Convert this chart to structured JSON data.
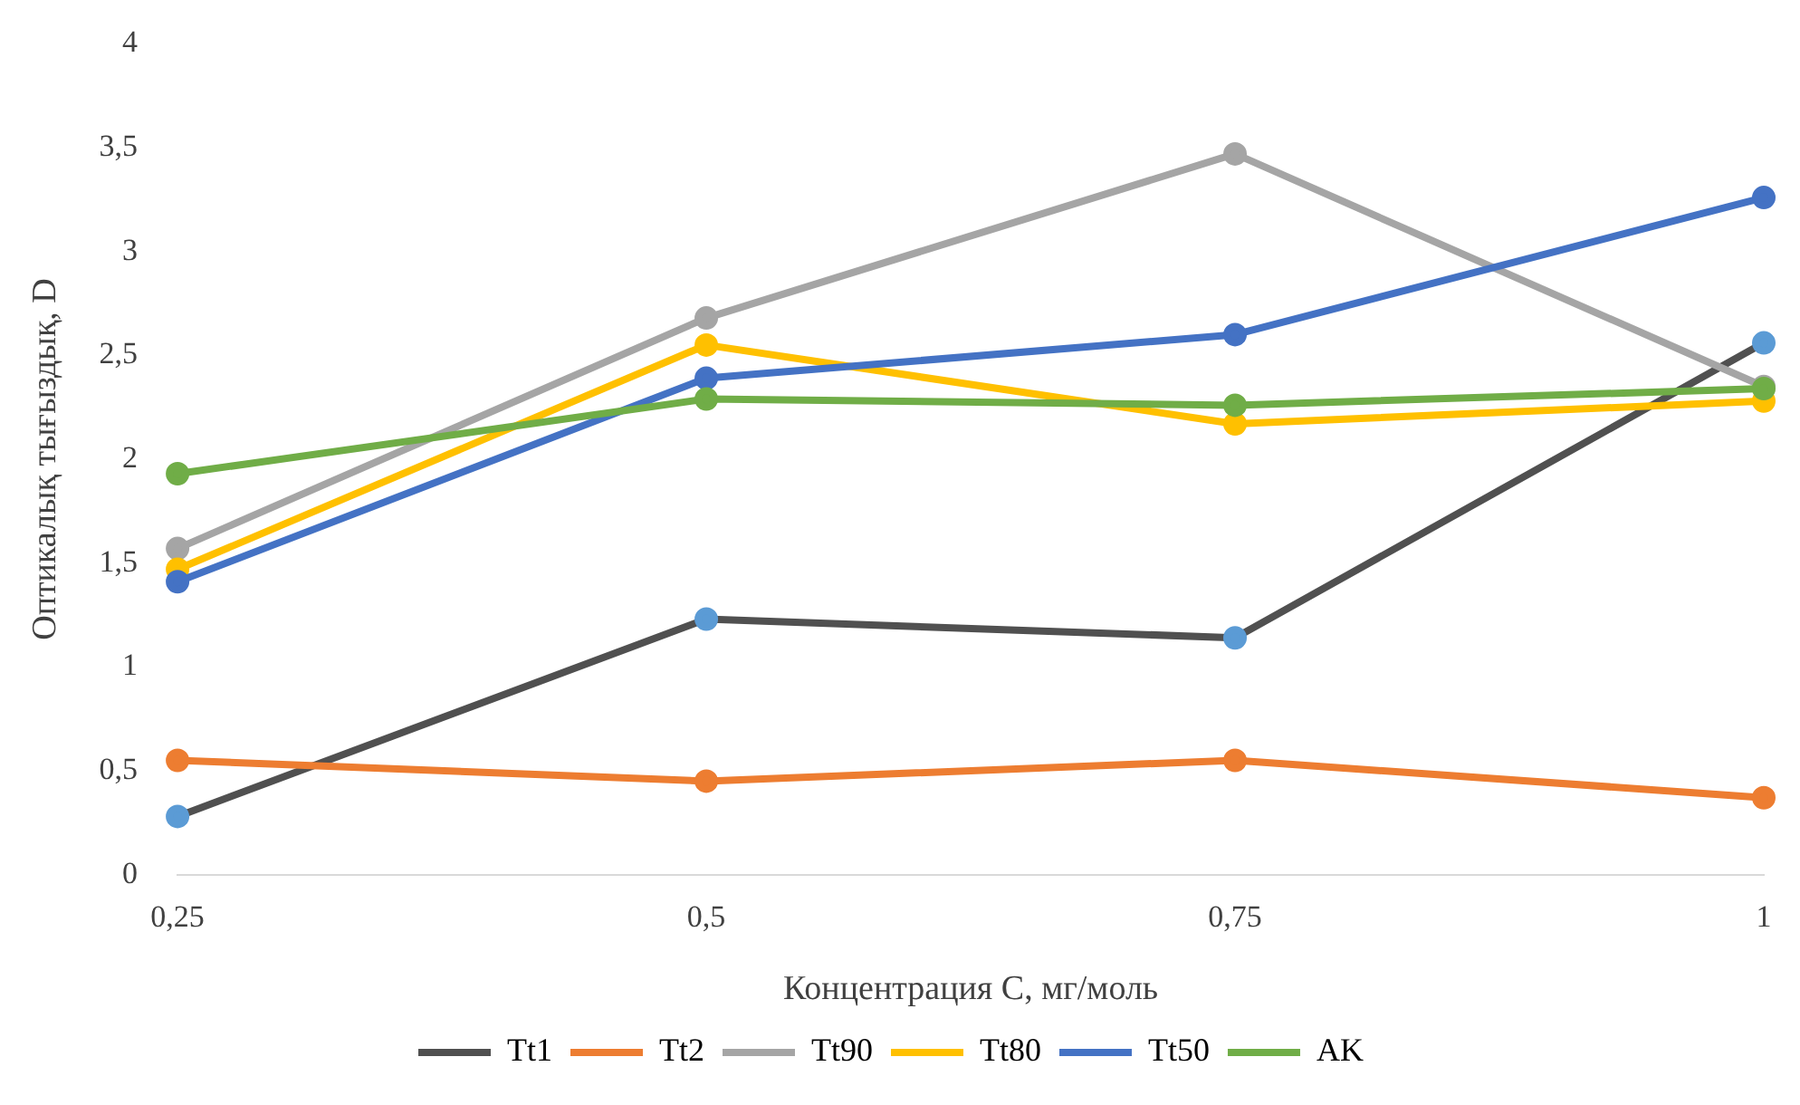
{
  "chart_data": {
    "type": "line",
    "xlabel": "Концентрация С, мг/моль",
    "ylabel": "Оптикалық тығыздық, D",
    "categories": [
      "0,25",
      "0,5",
      "0,75",
      "1"
    ],
    "ylim": [
      0,
      4
    ],
    "yticks": [
      {
        "value": 0,
        "label": "0"
      },
      {
        "value": 0.5,
        "label": "0,5"
      },
      {
        "value": 1,
        "label": "1"
      },
      {
        "value": 1.5,
        "label": "1,5"
      },
      {
        "value": 2,
        "label": "2"
      },
      {
        "value": 2.5,
        "label": "2,5"
      },
      {
        "value": 3,
        "label": "3"
      },
      {
        "value": 3.5,
        "label": "3,5"
      },
      {
        "value": 4,
        "label": "4"
      }
    ],
    "grid": false,
    "legend": "bottom",
    "marker": "circle",
    "line_style": "solid",
    "series": [
      {
        "name": "Tt1",
        "color": "#505050",
        "colors": [
          "#5b9bd5",
          "#5b9bd5",
          "#5b9bd5",
          "#5b9bd5"
        ],
        "values": [
          0.28,
          1.23,
          1.14,
          2.56
        ]
      },
      {
        "name": "Tt2",
        "color": "#ed7d31",
        "values": [
          0.55,
          0.45,
          0.55,
          0.37
        ]
      },
      {
        "name": "Tt90",
        "color": "#a5a5a5",
        "values": [
          1.57,
          2.68,
          3.47,
          2.35
        ]
      },
      {
        "name": "Tt80",
        "color": "#ffc000",
        "values": [
          1.47,
          2.55,
          2.17,
          2.28
        ]
      },
      {
        "name": "Tt50",
        "color": "#4472c4",
        "values": [
          1.41,
          2.39,
          2.6,
          3.26
        ]
      },
      {
        "name": "AK",
        "color": "#70ad47",
        "values": [
          1.93,
          2.29,
          2.26,
          2.34
        ]
      }
    ]
  }
}
